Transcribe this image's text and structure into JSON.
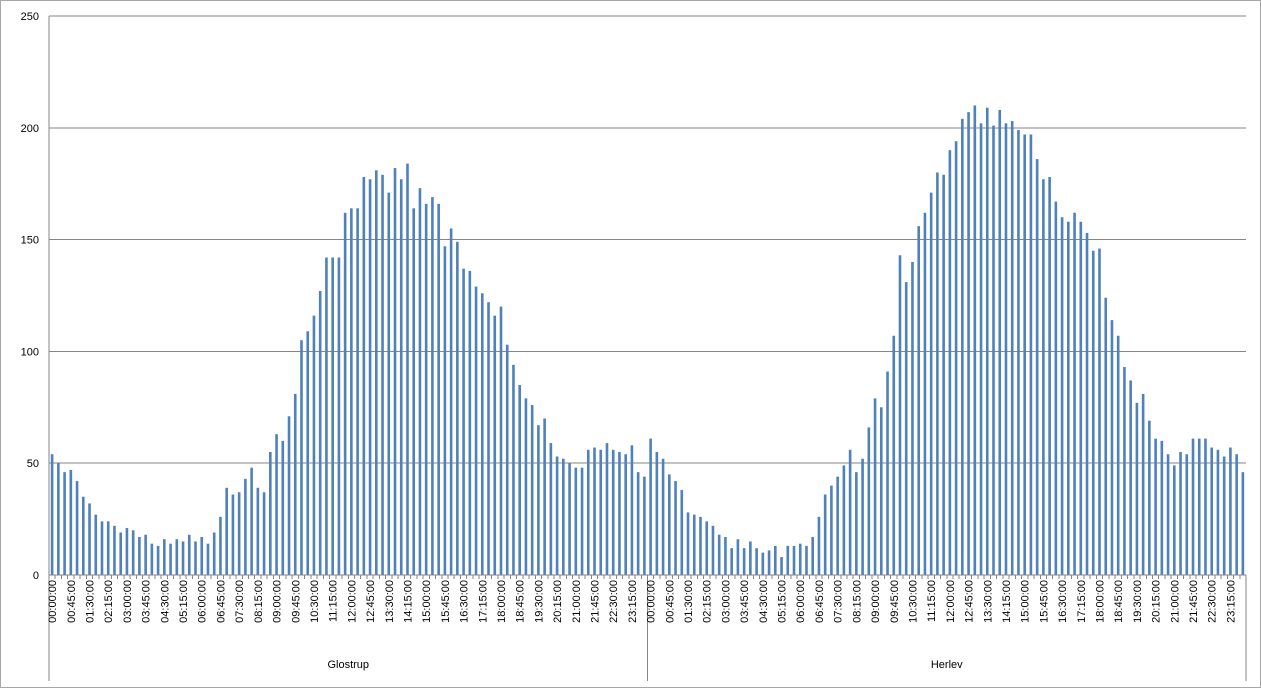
{
  "chart_data": {
    "type": "bar",
    "title": "",
    "xlabel": "",
    "ylabel": "",
    "ylim": [
      0,
      250
    ],
    "yticks": [
      0,
      50,
      100,
      150,
      200,
      250
    ],
    "grid": true,
    "legend": "none",
    "bar_color": "#4f81bd",
    "grid_color": "#868686",
    "x_tick_labels": [
      "00:00:00",
      "00:45:00",
      "01:30:00",
      "02:15:00",
      "03:00:00",
      "03:45:00",
      "04:30:00",
      "05:15:00",
      "06:00:00",
      "06:45:00",
      "07:30:00",
      "08:15:00",
      "09:00:00",
      "09:45:00",
      "10:30:00",
      "11:15:00",
      "12:00:00",
      "12:45:00",
      "13:30:00",
      "14:15:00",
      "15:00:00",
      "15:45:00",
      "16:30:00",
      "17:15:00",
      "18:00:00",
      "18:45:00",
      "19:30:00",
      "20:15:00",
      "21:00:00",
      "21:45:00",
      "22:30:00",
      "23:15:00"
    ],
    "groups": [
      {
        "name": "Glostrup",
        "values": [
          54,
          50,
          46,
          47,
          42,
          35,
          32,
          27,
          24,
          24,
          22,
          19,
          21,
          20,
          17,
          18,
          14,
          13,
          16,
          14,
          16,
          15,
          18,
          15,
          17,
          14,
          19,
          26,
          39,
          36,
          37,
          43,
          48,
          39,
          37,
          55,
          63,
          60,
          71,
          81,
          105,
          109,
          116,
          127,
          142,
          142,
          142,
          162,
          164,
          164,
          178,
          177,
          181,
          179,
          171,
          182,
          177,
          184,
          164,
          173,
          166,
          169,
          166,
          147,
          155,
          149,
          137,
          136,
          129,
          126,
          122,
          116,
          120,
          103,
          94,
          85,
          79,
          76,
          67,
          70,
          59,
          53,
          52,
          50,
          48,
          48,
          56,
          57,
          56,
          59,
          56,
          55,
          54,
          58,
          46,
          44
        ]
      },
      {
        "name": "Herlev",
        "values": [
          61,
          55,
          52,
          45,
          42,
          38,
          28,
          27,
          26,
          24,
          22,
          18,
          17,
          12,
          16,
          12,
          15,
          12,
          10,
          11,
          13,
          8,
          13,
          13,
          14,
          13,
          17,
          26,
          36,
          40,
          44,
          49,
          56,
          46,
          52,
          66,
          79,
          75,
          91,
          107,
          143,
          131,
          140,
          156,
          162,
          171,
          180,
          179,
          190,
          194,
          204,
          207,
          210,
          202,
          209,
          201,
          208,
          202,
          203,
          199,
          197,
          197,
          186,
          177,
          178,
          167,
          160,
          158,
          162,
          158,
          153,
          145,
          146,
          124,
          114,
          107,
          93,
          87,
          77,
          81,
          69,
          61,
          60,
          54,
          49,
          55,
          54,
          61,
          61,
          61,
          57,
          56,
          53,
          57,
          54,
          46
        ]
      }
    ]
  }
}
